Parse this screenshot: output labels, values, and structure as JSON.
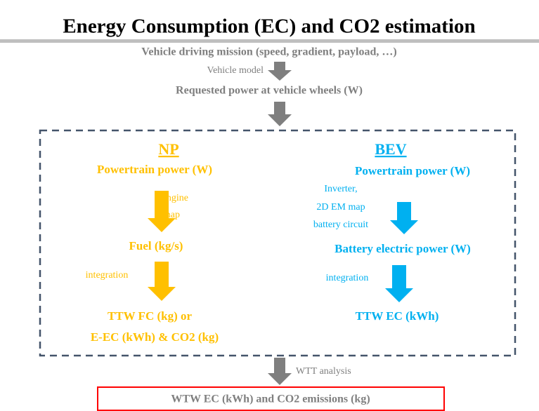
{
  "title": "Energy Consumption (EC) and CO2 estimation",
  "mission": "Vehicle driving mission (speed, gradient, payload, …)",
  "vehicle_model": "Vehicle model",
  "requested_power": "Requested power at vehicle wheels (W)",
  "np": {
    "heading": "NP",
    "powertrain_power": "Powertrain power (W)",
    "map_label": [
      "Engine",
      "map"
    ],
    "fuel": "Fuel (kg/s)",
    "integration": "integration",
    "result": [
      "TTW FC (kg) or",
      "E-EC (kWh) & CO2 (kg)"
    ]
  },
  "bev": {
    "heading": "BEV",
    "powertrain_power": "Powertrain power (W)",
    "map_label": [
      "Inverter,",
      "2D EM map",
      "battery circuit"
    ],
    "battery_power": "Battery electric power (W)",
    "integration": "integration",
    "result": "TTW EC (kWh)"
  },
  "wtt_analysis": "WTT analysis",
  "wtw_result": "WTW EC (kWh) and CO2 emissions (kg)"
}
